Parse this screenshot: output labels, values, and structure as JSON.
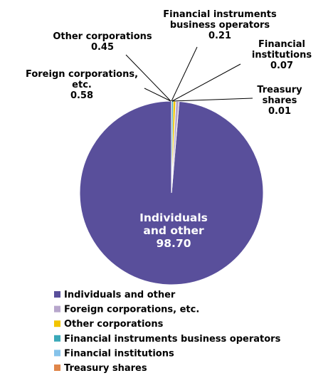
{
  "chart_data": {
    "type": "pie",
    "title": "",
    "slices": [
      {
        "name": "Individuals and other",
        "value": 98.7,
        "value_label": "98.70",
        "color": "#594F9B",
        "label_lines": [
          "Individuals",
          "and other"
        ]
      },
      {
        "name": "Foreign corporations, etc.",
        "value": 0.58,
        "value_label": "0.58",
        "color": "#B7A6CC",
        "label_lines": [
          "Foreign corporations,",
          "etc."
        ]
      },
      {
        "name": "Other corporations",
        "value": 0.45,
        "value_label": "0.45",
        "color": "#F2C500",
        "label_lines": [
          "Other corporations"
        ]
      },
      {
        "name": "Financial instruments business operators",
        "value": 0.21,
        "value_label": "0.21",
        "color": "#3AA9B9",
        "label_lines": [
          "Financial instruments",
          "business operators"
        ]
      },
      {
        "name": "Financial institutions",
        "value": 0.07,
        "value_label": "0.07",
        "color": "#86C3EA",
        "label_lines": [
          "Financial",
          "institutions"
        ]
      },
      {
        "name": "Treasury shares",
        "value": 0.01,
        "value_label": "0.01",
        "color": "#E0864A",
        "label_lines": [
          "Treasury",
          "shares"
        ]
      }
    ],
    "legend_position": "bottom"
  }
}
